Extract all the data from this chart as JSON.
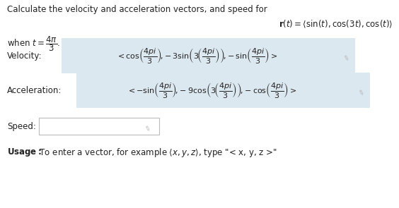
{
  "title": "Calculate the velocity and acceleration vectors, and speed for",
  "r_eq": "$\\mathbf{r}(t) = \\langle \\sin(t), \\cos(3t), \\cos(t)\\rangle$",
  "when_t": "when $t = \\dfrac{4\\pi}{3}$.",
  "vel_label": "Velocity:",
  "vel_expr": "$< \\cos\\!\\left(\\dfrac{4pi}{3}\\right)\\!,\\!-3\\sin\\!\\left(3\\!\\left(\\dfrac{4pi}{3}\\right)\\right)\\!,\\!-\\sin\\!\\left(\\dfrac{4pi}{3}\\right) >$",
  "acc_label": "Acceleration:",
  "acc_expr": "$< -\\sin\\!\\left(\\dfrac{4pi}{3}\\right)\\!,\\!-9\\cos\\!\\left(3\\!\\left(\\dfrac{4pi}{3}\\right)\\right)\\!,\\!-\\cos\\!\\left(\\dfrac{4pi}{3}\\right) >$",
  "speed_label": "Speed:",
  "usage_label": "Usage:",
  "usage_rest": " To enter a vector, for example $\\langle x, y, z\\rangle$, type \"< x, y, z >\"",
  "bg": "#ffffff",
  "box_fill": "#dce8f0",
  "speed_fill": "#ffffff",
  "text_col": "#222222",
  "pencil_col": "#aaaaaa",
  "label_col": "#111111"
}
